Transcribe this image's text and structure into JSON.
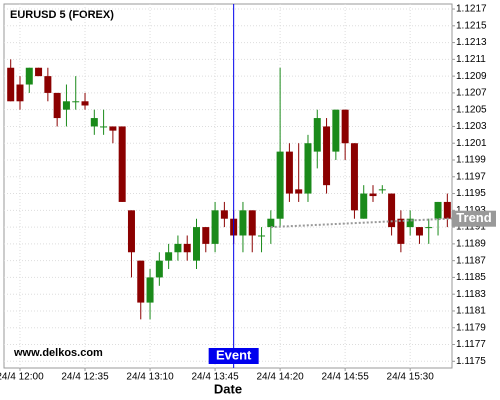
{
  "chart_data": {
    "type": "candlestick",
    "title": "EURUSD 5 (FOREX)",
    "watermark": "www.delkos.com",
    "x_label": "Date",
    "categories": [
      "24/4 11:55",
      "24/4 12:00",
      "24/4 12:05",
      "24/4 12:10",
      "24/4 12:15",
      "24/4 12:20",
      "24/4 12:25",
      "24/4 12:30",
      "24/4 12:35",
      "24/4 12:40",
      "24/4 12:45",
      "24/4 12:50",
      "24/4 12:55",
      "24/4 13:00",
      "24/4 13:05",
      "24/4 13:10",
      "24/4 13:15",
      "24/4 13:20",
      "24/4 13:25",
      "24/4 13:30",
      "24/4 13:35",
      "24/4 13:40",
      "24/4 13:45",
      "24/4 13:50",
      "24/4 13:55",
      "24/4 14:00",
      "24/4 14:05",
      "24/4 14:10",
      "24/4 14:15",
      "24/4 14:20",
      "24/4 14:25",
      "24/4 14:30",
      "24/4 14:35",
      "24/4 14:40",
      "24/4 14:45",
      "24/4 14:50",
      "24/4 14:55",
      "24/4 15:00",
      "24/4 15:05",
      "24/4 15:10",
      "24/4 15:15",
      "24/4 15:20",
      "24/4 15:25",
      "24/4 15:30",
      "24/4 15:35",
      "24/4 15:40",
      "24/4 15:45",
      "24/4 15:50"
    ],
    "open": [
      1.121,
      1.1208,
      1.1208,
      1.121,
      1.1209,
      1.1207,
      1.1205,
      1.1206,
      1.1206,
      1.1203,
      1.1203,
      1.1203,
      1.1203,
      1.1193,
      1.1187,
      1.1182,
      1.1185,
      1.1187,
      1.1188,
      1.1189,
      1.1187,
      1.1191,
      1.1189,
      1.1193,
      1.1192,
      1.119,
      1.1193,
      1.119,
      1.1191,
      1.1192,
      1.12,
      1.11955,
      1.1195,
      1.12,
      1.1203,
      1.12,
      1.1205,
      1.1201,
      1.1192,
      1.1195,
      1.11955,
      1.1195,
      1.1192,
      1.1191,
      1.1191,
      1.1191,
      1.1192,
      1.1194
    ],
    "high": [
      1.1211,
      1.1209,
      1.121,
      1.121,
      1.121,
      1.1207,
      1.1208,
      1.1209,
      1.1207,
      1.1205,
      1.1205,
      1.1203,
      1.1203,
      1.1193,
      1.1187,
      1.1186,
      1.1188,
      1.1189,
      1.119,
      1.119,
      1.1192,
      1.1191,
      1.1194,
      1.1194,
      1.1193,
      1.1194,
      1.1193,
      1.1191,
      1.1193,
      1.121,
      1.1201,
      1.1201,
      1.1202,
      1.1205,
      1.1204,
      1.1205,
      1.1205,
      1.1201,
      1.1196,
      1.1196,
      1.1196,
      1.1195,
      1.1193,
      1.1193,
      1.1191,
      1.1192,
      1.1194,
      1.1195
    ],
    "low": [
      1.1206,
      1.1205,
      1.1207,
      1.1209,
      1.1206,
      1.1203,
      1.1203,
      1.1205,
      1.1205,
      1.1202,
      1.1202,
      1.1201,
      1.1194,
      1.1185,
      1.118,
      1.118,
      1.1184,
      1.1186,
      1.1187,
      1.1187,
      1.1186,
      1.1188,
      1.1188,
      1.1191,
      1.1189,
      1.1188,
      1.1188,
      1.1188,
      1.1189,
      1.1191,
      1.1194,
      1.1194,
      1.1194,
      1.1198,
      1.1195,
      1.1199,
      1.1199,
      1.1192,
      1.1192,
      1.1194,
      1.1195,
      1.119,
      1.1188,
      1.119,
      1.1189,
      1.1189,
      1.119,
      1.1191
    ],
    "close": [
      1.1206,
      1.1206,
      1.121,
      1.1209,
      1.1207,
      1.1204,
      1.1206,
      1.1206,
      1.12055,
      1.1204,
      1.1203,
      1.12025,
      1.1194,
      1.1188,
      1.1182,
      1.1185,
      1.1187,
      1.1188,
      1.1189,
      1.1188,
      1.1191,
      1.1189,
      1.1193,
      1.1192,
      1.119,
      1.1193,
      1.119,
      1.119,
      1.1192,
      1.12,
      1.1195,
      1.1195,
      1.1201,
      1.1204,
      1.1196,
      1.1205,
      1.1201,
      1.1193,
      1.1195,
      1.11947,
      1.11955,
      1.1191,
      1.1189,
      1.1192,
      1.119,
      1.1191,
      1.1194,
      1.1192
    ],
    "up_color": "#1a8a1a",
    "down_color": "#8b0000",
    "ylim": [
      1.11742,
      1.12176
    ],
    "yticks": [
      1.1175,
      1.1177,
      1.1179,
      1.1181,
      1.1183,
      1.1185,
      1.1187,
      1.1189,
      1.1191,
      1.1193,
      1.1195,
      1.1197,
      1.1199,
      1.1201,
      1.1203,
      1.1205,
      1.1207,
      1.1209,
      1.1211,
      1.1213,
      1.1215,
      1.1217
    ],
    "xticks": [
      "24/4 12:00",
      "24/4 12:35",
      "24/4 13:10",
      "24/4 13:45",
      "24/4 14:20",
      "24/4 14:55",
      "24/4 15:30"
    ],
    "grid": true,
    "trend": {
      "label": "Trend",
      "x": [
        "24/4 14:15",
        "24/4 15:50"
      ],
      "values": [
        1.1191,
        1.1192
      ],
      "color": "#999999"
    },
    "event": {
      "label": "Event",
      "x": "24/4 13:55",
      "color": "#0000ee"
    }
  }
}
